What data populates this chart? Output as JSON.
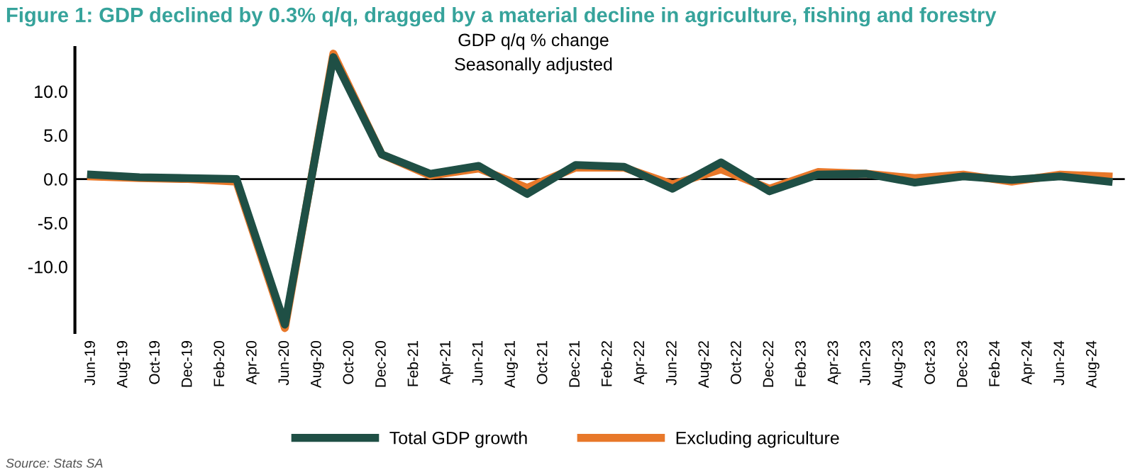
{
  "chart_data": {
    "type": "line",
    "title": "Figure 1: GDP declined by 0.3% q/q, dragged by a material decline in agriculture, fishing and forestry",
    "subtitle": "GDP q/q % change\nSeasonally adjusted",
    "annotations": [
      "Source: Stats SA"
    ],
    "x": [
      "2019-06",
      "2019-09",
      "2019-12",
      "2020-03",
      "2020-06",
      "2020-09",
      "2020-12",
      "2021-03",
      "2021-06",
      "2021-09",
      "2021-12",
      "2022-03",
      "2022-06",
      "2022-09",
      "2022-12",
      "2023-03",
      "2023-06",
      "2023-09",
      "2023-12",
      "2024-03",
      "2024-06",
      "2024-09"
    ],
    "series": [
      {
        "name": "Excluding agriculture",
        "color": "#e8782a",
        "values": [
          0.3,
          0.1,
          0.0,
          -0.3,
          -17.0,
          14.3,
          2.8,
          0.4,
          1.2,
          -1.0,
          1.3,
          1.3,
          -0.6,
          1.1,
          -1.1,
          0.8,
          0.6,
          0.1,
          0.5,
          -0.3,
          0.5,
          0.3
        ]
      },
      {
        "name": "Total GDP growth",
        "color": "#1f4f45",
        "values": [
          0.5,
          0.2,
          0.1,
          0.0,
          -16.6,
          13.9,
          2.8,
          0.6,
          1.5,
          -1.7,
          1.6,
          1.4,
          -1.1,
          1.9,
          -1.4,
          0.5,
          0.6,
          -0.4,
          0.3,
          -0.1,
          0.3,
          -0.3
        ]
      }
    ],
    "xlim": [
      "2019-05",
      "2024-10"
    ],
    "xticks": [
      {
        "value": "2019-06",
        "label": "Jun-19"
      },
      {
        "value": "2019-08",
        "label": "Aug-19"
      },
      {
        "value": "2019-10",
        "label": "Oct-19"
      },
      {
        "value": "2019-12",
        "label": "Dec-19"
      },
      {
        "value": "2020-02",
        "label": "Feb-20"
      },
      {
        "value": "2020-04",
        "label": "Apr-20"
      },
      {
        "value": "2020-06",
        "label": "Jun-20"
      },
      {
        "value": "2020-08",
        "label": "Aug-20"
      },
      {
        "value": "2020-10",
        "label": "Oct-20"
      },
      {
        "value": "2020-12",
        "label": "Dec-20"
      },
      {
        "value": "2021-02",
        "label": "Feb-21"
      },
      {
        "value": "2021-04",
        "label": "Apr-21"
      },
      {
        "value": "2021-06",
        "label": "Jun-21"
      },
      {
        "value": "2021-08",
        "label": "Aug-21"
      },
      {
        "value": "2021-10",
        "label": "Oct-21"
      },
      {
        "value": "2021-12",
        "label": "Dec-21"
      },
      {
        "value": "2022-02",
        "label": "Feb-22"
      },
      {
        "value": "2022-04",
        "label": "Apr-22"
      },
      {
        "value": "2022-06",
        "label": "Jun-22"
      },
      {
        "value": "2022-08",
        "label": "Aug-22"
      },
      {
        "value": "2022-10",
        "label": "Oct-22"
      },
      {
        "value": "2022-12",
        "label": "Dec-22"
      },
      {
        "value": "2023-02",
        "label": "Feb-23"
      },
      {
        "value": "2023-04",
        "label": "Apr-23"
      },
      {
        "value": "2023-06",
        "label": "Jun-23"
      },
      {
        "value": "2023-08",
        "label": "Aug-23"
      },
      {
        "value": "2023-10",
        "label": "Oct-23"
      },
      {
        "value": "2023-12",
        "label": "Dec-23"
      },
      {
        "value": "2024-02",
        "label": "Feb-24"
      },
      {
        "value": "2024-04",
        "label": "Apr-24"
      },
      {
        "value": "2024-06",
        "label": "Jun-24"
      },
      {
        "value": "2024-08",
        "label": "Aug-24"
      }
    ],
    "ylim": [
      -17.5,
      15
    ],
    "yticks": [
      {
        "value": -10,
        "label": "-10.0"
      },
      {
        "value": -5,
        "label": "-5.0"
      },
      {
        "value": 0,
        "label": "0.0"
      },
      {
        "value": 5,
        "label": "5.0"
      },
      {
        "value": 10,
        "label": "10.0"
      }
    ],
    "ref_lines": [
      {
        "axis": "y",
        "value": 0,
        "color": "#000000"
      }
    ],
    "legend": "bottom",
    "grid": false,
    "marker": "none",
    "line_style": "solid"
  }
}
